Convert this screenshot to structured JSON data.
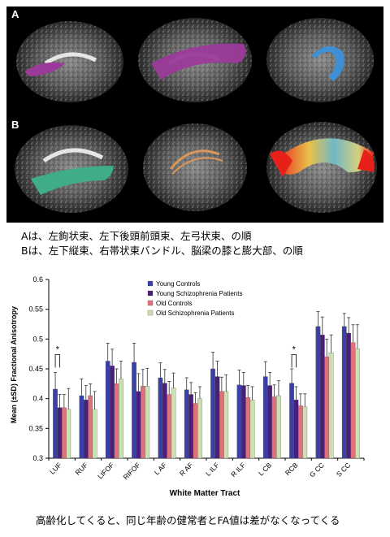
{
  "figure": {
    "panel_a_label": "A",
    "panel_b_label": "B",
    "colors": {
      "magenta_tract": "#9b3a9b",
      "blue_tract": "#3f8fd6",
      "green_tract": "#3fae86",
      "orange_tract": "#d9975b",
      "red_tract": "#e8201a",
      "background": "#000000"
    }
  },
  "captions": {
    "line_a": "Aは、左鉤状束、左下後頭前頭束、左弓状束、の順",
    "line_b": "Bは、左下縦束、右帯状束バンドル、脳梁の膝と膨大部、の順",
    "bottom": "高齢化してくると、同じ年齢の健常者とFA値は差がなくなってくる"
  },
  "chart_data": {
    "type": "bar",
    "ylabel": "Mean (±SD) Fractional Anisotropy",
    "xlabel": "White Matter Tract",
    "ylim": [
      0.3,
      0.6
    ],
    "yticks": [
      "0.3",
      "0.35",
      "0.4",
      "0.45",
      "0.5",
      "0.55",
      "0.6"
    ],
    "grid": false,
    "legend_position": "top-center",
    "categories": [
      "LUF",
      "RUF",
      "LIFOF",
      "RIFOF",
      "L AF",
      "R AF",
      "L ILF",
      "R ILF",
      "L CB",
      "RCB",
      "G CC",
      "S CC"
    ],
    "series": [
      {
        "name": "Young Controls",
        "color": "#3b3fa6",
        "values": [
          0.416,
          0.405,
          0.463,
          0.461,
          0.435,
          0.415,
          0.45,
          0.423,
          0.437,
          0.426,
          0.521,
          0.521
        ]
      },
      {
        "name": "Young Schizophrenia Patients",
        "color": "#4a1f78",
        "values": [
          0.385,
          0.398,
          0.455,
          0.412,
          0.426,
          0.407,
          0.437,
          0.422,
          0.422,
          0.398,
          0.507,
          0.51
        ]
      },
      {
        "name": "Old Controls",
        "color": "#e0707c",
        "values": [
          0.385,
          0.405,
          0.425,
          0.421,
          0.407,
          0.392,
          0.412,
          0.402,
          0.403,
          0.388,
          0.47,
          0.494
        ]
      },
      {
        "name": "Old Schizophrenia Patients",
        "color": "#cde0b2",
        "values": [
          0.382,
          0.382,
          0.433,
          0.421,
          0.418,
          0.4,
          0.412,
          0.398,
          0.405,
          0.386,
          0.477,
          0.484
        ]
      }
    ],
    "errors": [
      [
        0.028,
        0.028,
        0.03,
        0.032,
        0.025,
        0.02,
        0.028,
        0.025,
        0.025,
        0.024,
        0.025,
        0.022
      ],
      [
        0.022,
        0.024,
        0.028,
        0.03,
        0.023,
        0.02,
        0.026,
        0.022,
        0.022,
        0.022,
        0.03,
        0.026
      ],
      [
        0.022,
        0.02,
        0.025,
        0.028,
        0.022,
        0.018,
        0.024,
        0.02,
        0.02,
        0.02,
        0.03,
        0.03
      ],
      [
        0.035,
        0.03,
        0.03,
        0.03,
        0.025,
        0.02,
        0.028,
        0.022,
        0.025,
        0.022,
        0.03,
        0.04
      ]
    ],
    "annotations": [
      {
        "text": "*",
        "category": "LUF"
      },
      {
        "text": "*",
        "category": "RCB"
      }
    ]
  }
}
